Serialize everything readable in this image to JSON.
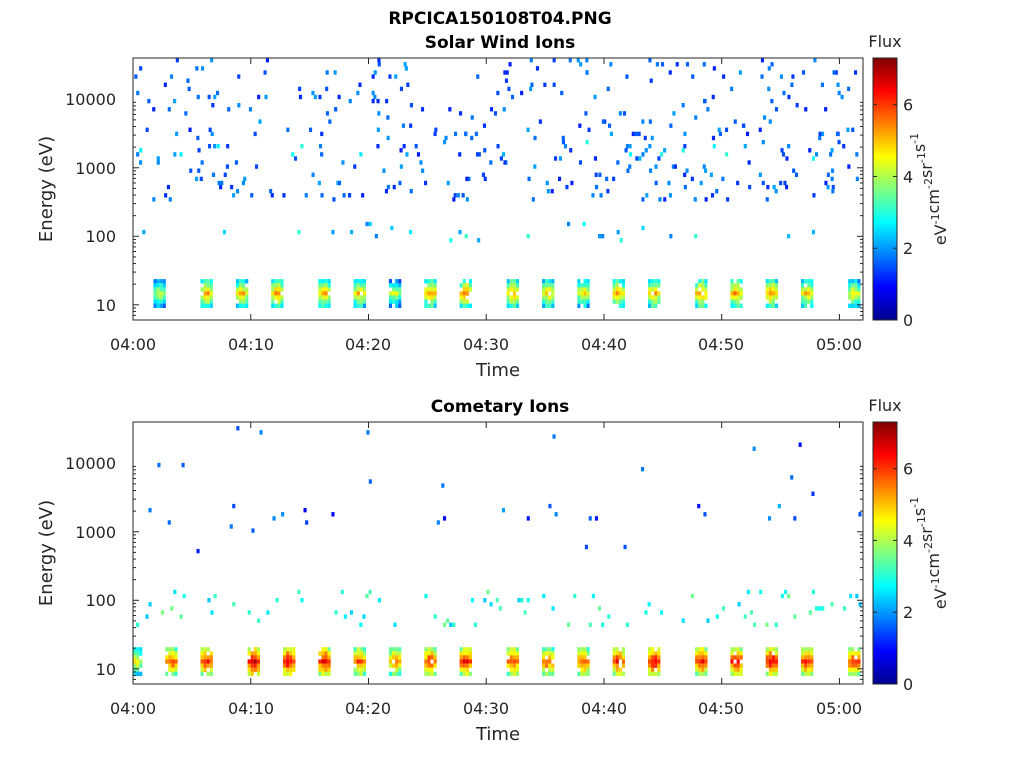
{
  "figure_title": "RPCICA150108T04.PNG",
  "chart_data": [
    {
      "type": "heatmap",
      "title": "Solar Wind Ions",
      "xlabel": "Time",
      "ylabel": "Energy (eV)",
      "x_scale": "time",
      "y_scale": "log",
      "xlim": [
        "04:00",
        "05:02"
      ],
      "ylim": [
        6,
        40000
      ],
      "x_ticks": [
        "04:00",
        "04:10",
        "04:20",
        "04:30",
        "04:40",
        "04:50",
        "05:00"
      ],
      "y_ticks": [
        10,
        100,
        1000,
        10000
      ],
      "y_tick_labels": [
        "10",
        "100",
        "1000",
        "10000"
      ],
      "colorbar": {
        "title": "Flux",
        "label": "eV-1cm-2sr-1s-1",
        "label_parts": [
          [
            "eV",
            "-1"
          ],
          [
            "cm",
            "-2"
          ],
          [
            "sr",
            "-1"
          ],
          [
            "s",
            "-1"
          ]
        ],
        "range": [
          0,
          7.3
        ],
        "ticks": [
          0,
          2,
          4,
          6
        ],
        "colormap": "jet"
      },
      "scan_cycle_minutes": 3.2,
      "low_energy_bursts": [
        {
          "time": "04:02",
          "energy_eV": 15,
          "flux": 4.5
        },
        {
          "time": "04:06",
          "energy_eV": 15,
          "flux": 5.5
        },
        {
          "time": "04:09",
          "energy_eV": 15,
          "flux": 5.3
        },
        {
          "time": "04:12",
          "energy_eV": 15,
          "flux": 5.6
        },
        {
          "time": "04:16",
          "energy_eV": 15,
          "flux": 5.4
        },
        {
          "time": "04:19",
          "energy_eV": 15,
          "flux": 5.2
        },
        {
          "time": "04:22",
          "energy_eV": 15,
          "flux": 4.6
        },
        {
          "time": "04:25",
          "energy_eV": 15,
          "flux": 5.5
        },
        {
          "time": "04:28",
          "energy_eV": 15,
          "flux": 5.6
        },
        {
          "time": "04:32",
          "energy_eV": 15,
          "flux": 5.5
        },
        {
          "time": "04:35",
          "energy_eV": 15,
          "flux": 5.2
        },
        {
          "time": "04:38",
          "energy_eV": 15,
          "flux": 5.0
        },
        {
          "time": "04:41",
          "energy_eV": 15,
          "flux": 5.4
        },
        {
          "time": "04:44",
          "energy_eV": 15,
          "flux": 5.5
        },
        {
          "time": "04:48",
          "energy_eV": 15,
          "flux": 5.6
        },
        {
          "time": "04:51",
          "energy_eV": 15,
          "flux": 5.6
        },
        {
          "time": "04:54",
          "energy_eV": 15,
          "flux": 5.5
        },
        {
          "time": "04:57",
          "energy_eV": 15,
          "flux": 5.3
        },
        {
          "time": "05:01",
          "energy_eV": 15,
          "flux": 5.0
        }
      ],
      "secondary_bands": [
        {
          "energy_eV": 120,
          "flux": 2.5
        },
        {
          "energy_eV": 1800,
          "flux": 2.4
        }
      ],
      "sparse_high_energy_flux": 1.6
    },
    {
      "type": "heatmap",
      "title": "Cometary Ions",
      "xlabel": "Time",
      "ylabel": "Energy (eV)",
      "x_scale": "time",
      "y_scale": "log",
      "xlim": [
        "04:00",
        "05:02"
      ],
      "ylim": [
        6,
        40000
      ],
      "x_ticks": [
        "04:00",
        "04:10",
        "04:20",
        "04:30",
        "04:40",
        "04:50",
        "05:00"
      ],
      "y_ticks": [
        10,
        100,
        1000,
        10000
      ],
      "y_tick_labels": [
        "10",
        "100",
        "1000",
        "10000"
      ],
      "colorbar": {
        "title": "Flux",
        "label": "eV-1cm-2sr-1s-1",
        "label_parts": [
          [
            "eV",
            "-1"
          ],
          [
            "cm",
            "-2"
          ],
          [
            "sr",
            "-1"
          ],
          [
            "s",
            "-1"
          ]
        ],
        "range": [
          0,
          7.3
        ],
        "ticks": [
          0,
          2,
          4,
          6
        ],
        "colormap": "jet"
      },
      "scan_cycle_minutes": 3.2,
      "low_energy_bursts": [
        {
          "time": "04:00",
          "energy_eV": 12,
          "flux": 5.0
        },
        {
          "time": "04:03",
          "energy_eV": 12,
          "flux": 6.2
        },
        {
          "time": "04:06",
          "energy_eV": 12,
          "flux": 6.5
        },
        {
          "time": "04:10",
          "energy_eV": 12,
          "flux": 6.9
        },
        {
          "time": "04:13",
          "energy_eV": 12,
          "flux": 6.9
        },
        {
          "time": "04:16",
          "energy_eV": 12,
          "flux": 6.7
        },
        {
          "time": "04:19",
          "energy_eV": 12,
          "flux": 6.2
        },
        {
          "time": "04:22",
          "energy_eV": 12,
          "flux": 6.0
        },
        {
          "time": "04:25",
          "energy_eV": 12,
          "flux": 6.4
        },
        {
          "time": "04:28",
          "energy_eV": 12,
          "flux": 6.6
        },
        {
          "time": "04:32",
          "energy_eV": 12,
          "flux": 6.3
        },
        {
          "time": "04:35",
          "energy_eV": 12,
          "flux": 6.1
        },
        {
          "time": "04:38",
          "energy_eV": 12,
          "flux": 6.2
        },
        {
          "time": "04:41",
          "energy_eV": 12,
          "flux": 6.5
        },
        {
          "time": "04:44",
          "energy_eV": 12,
          "flux": 6.7
        },
        {
          "time": "04:48",
          "energy_eV": 12,
          "flux": 6.6
        },
        {
          "time": "04:51",
          "energy_eV": 12,
          "flux": 6.8
        },
        {
          "time": "04:54",
          "energy_eV": 12,
          "flux": 6.8
        },
        {
          "time": "04:57",
          "energy_eV": 12,
          "flux": 6.6
        },
        {
          "time": "05:01",
          "energy_eV": 12,
          "flux": 6.5
        }
      ],
      "secondary_bands": [
        {
          "energy_eV": 80,
          "flux": 3.0
        },
        {
          "energy_eV": 1800,
          "flux": 1.5
        }
      ],
      "sparse_high_energy_flux": 1.5
    }
  ]
}
